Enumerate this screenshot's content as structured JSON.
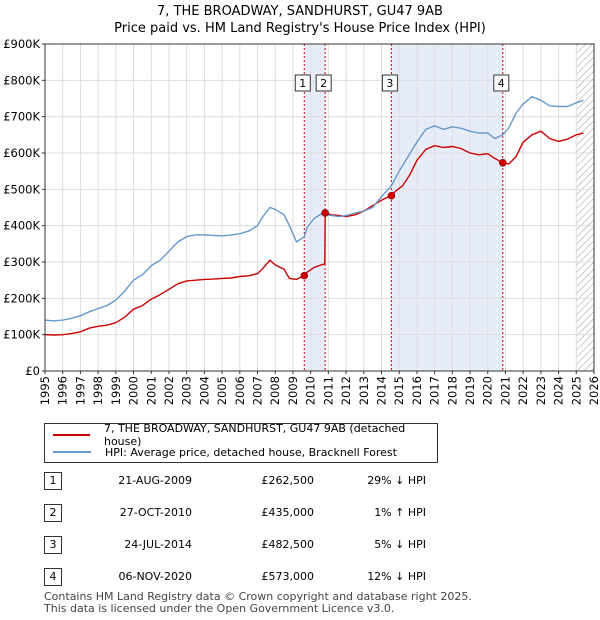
{
  "title_line1": "7, THE BROADWAY, SANDHURST, GU47 9AB",
  "title_line2": "Price paid vs. HM Land Registry's House Price Index (HPI)",
  "colors": {
    "price": "#cc0000",
    "hpi": "#6699cc",
    "shade": "#dde6f5",
    "grid": "#dddddd",
    "vline": "#cc0000"
  },
  "chart_data": {
    "type": "line",
    "xlim": [
      1995,
      2026
    ],
    "ylim": [
      0,
      900000
    ],
    "x_ticks": [
      1995,
      1996,
      1997,
      1998,
      1999,
      2000,
      2001,
      2002,
      2003,
      2004,
      2005,
      2006,
      2007,
      2008,
      2009,
      2010,
      2011,
      2012,
      2013,
      2014,
      2015,
      2016,
      2017,
      2018,
      2019,
      2020,
      2021,
      2022,
      2023,
      2024,
      2025,
      2026
    ],
    "y_ticks": [
      0,
      100000,
      200000,
      300000,
      400000,
      500000,
      600000,
      700000,
      800000,
      900000
    ],
    "y_tick_labels": [
      "£0",
      "£100K",
      "£200K",
      "£300K",
      "£400K",
      "£500K",
      "£600K",
      "£700K",
      "£800K",
      "£900K"
    ],
    "series": [
      {
        "name": "7, THE BROADWAY, SANDHURST, GU47 9AB (detached house)",
        "x": [
          1995,
          1995.5,
          1996,
          1996.5,
          1997,
          1997.5,
          1998,
          1998.5,
          1999,
          1999.5,
          2000,
          2000.5,
          2001,
          2001.5,
          2002,
          2002.5,
          2003,
          2003.5,
          2004,
          2004.5,
          2005,
          2005.5,
          2006,
          2006.5,
          2007,
          2007.3,
          2007.7,
          2008,
          2008.5,
          2008.8,
          2009.2,
          2009.64,
          2009.8,
          2010.2,
          2010.6,
          2010.8,
          2010.82,
          2011.2,
          2011.6,
          2012,
          2012.5,
          2013,
          2013.5,
          2014,
          2014.4,
          2014.56,
          2014.8,
          2015.2,
          2015.6,
          2016,
          2016.5,
          2017,
          2017.5,
          2018,
          2018.5,
          2019,
          2019.5,
          2020,
          2020.4,
          2020.85,
          2021.2,
          2021.6,
          2022,
          2022.5,
          2023,
          2023.5,
          2024,
          2024.5,
          2025,
          2025.4
        ],
        "values": [
          100000,
          99000,
          100000,
          103000,
          108000,
          118000,
          123000,
          126000,
          133000,
          148000,
          170000,
          180000,
          198000,
          210000,
          225000,
          240000,
          248000,
          250000,
          252000,
          253000,
          255000,
          256000,
          260000,
          262000,
          268000,
          282000,
          305000,
          292000,
          280000,
          255000,
          252000,
          262500,
          272000,
          285000,
          292000,
          295000,
          435000,
          430000,
          428000,
          425000,
          430000,
          440000,
          455000,
          470000,
          480000,
          482500,
          495000,
          510000,
          540000,
          580000,
          610000,
          620000,
          615000,
          618000,
          612000,
          600000,
          595000,
          598000,
          585000,
          573000,
          570000,
          590000,
          630000,
          650000,
          660000,
          640000,
          632000,
          638000,
          650000,
          655000
        ]
      },
      {
        "name": "HPI: Average price, detached house, Bracknell Forest",
        "x": [
          1995,
          1995.5,
          1996,
          1996.5,
          1997,
          1997.5,
          1998,
          1998.5,
          1999,
          1999.5,
          2000,
          2000.5,
          2001,
          2001.5,
          2002,
          2002.5,
          2003,
          2003.5,
          2004,
          2004.5,
          2005,
          2005.5,
          2006,
          2006.5,
          2007,
          2007.3,
          2007.7,
          2008,
          2008.5,
          2008.8,
          2009.2,
          2009.64,
          2009.8,
          2010.2,
          2010.6,
          2010.82,
          2011.2,
          2011.6,
          2012,
          2012.5,
          2013,
          2013.5,
          2014,
          2014.56,
          2015,
          2015.5,
          2016,
          2016.5,
          2017,
          2017.5,
          2018,
          2018.5,
          2019,
          2019.5,
          2020,
          2020.4,
          2020.85,
          2021.2,
          2021.6,
          2022,
          2022.5,
          2023,
          2023.5,
          2024,
          2024.5,
          2025,
          2025.4
        ],
        "values": [
          140000,
          138000,
          140000,
          145000,
          152000,
          163000,
          172000,
          180000,
          195000,
          220000,
          250000,
          265000,
          290000,
          305000,
          330000,
          355000,
          370000,
          375000,
          375000,
          373000,
          372000,
          374000,
          378000,
          385000,
          400000,
          425000,
          450000,
          445000,
          430000,
          400000,
          355000,
          370000,
          395000,
          420000,
          432000,
          430000,
          428000,
          425000,
          428000,
          435000,
          440000,
          450000,
          480000,
          510000,
          550000,
          590000,
          630000,
          665000,
          675000,
          665000,
          672000,
          668000,
          660000,
          655000,
          655000,
          640000,
          650000,
          670000,
          710000,
          735000,
          755000,
          745000,
          730000,
          728000,
          728000,
          738000,
          745000
        ]
      }
    ],
    "sales": [
      {
        "label": "1",
        "x": 2009.64,
        "value": 262500
      },
      {
        "label": "2",
        "x": 2010.82,
        "value": 435000
      },
      {
        "label": "3",
        "x": 2014.56,
        "value": 482500
      },
      {
        "label": "4",
        "x": 2020.85,
        "value": 573000
      }
    ],
    "shaded_ranges": [
      [
        2009.64,
        2010.82
      ],
      [
        2014.56,
        2020.85
      ]
    ],
    "hatched_from": 2025.0
  },
  "legend": {
    "price_label": "7, THE BROADWAY, SANDHURST, GU47 9AB (detached house)",
    "hpi_label": "HPI: Average price, detached house, Bracknell Forest"
  },
  "sales_table": [
    {
      "num": "1",
      "date": "21-AUG-2009",
      "price": "£262,500",
      "hpi": "29% ↓ HPI"
    },
    {
      "num": "2",
      "date": "27-OCT-2010",
      "price": "£435,000",
      "hpi": "1% ↑ HPI"
    },
    {
      "num": "3",
      "date": "24-JUL-2014",
      "price": "£482,500",
      "hpi": "5% ↓ HPI"
    },
    {
      "num": "4",
      "date": "06-NOV-2020",
      "price": "£573,000",
      "hpi": "12% ↓ HPI"
    }
  ],
  "footer_line1": "Contains HM Land Registry data © Crown copyright and database right 2025.",
  "footer_line2": "This data is licensed under the Open Government Licence v3.0."
}
